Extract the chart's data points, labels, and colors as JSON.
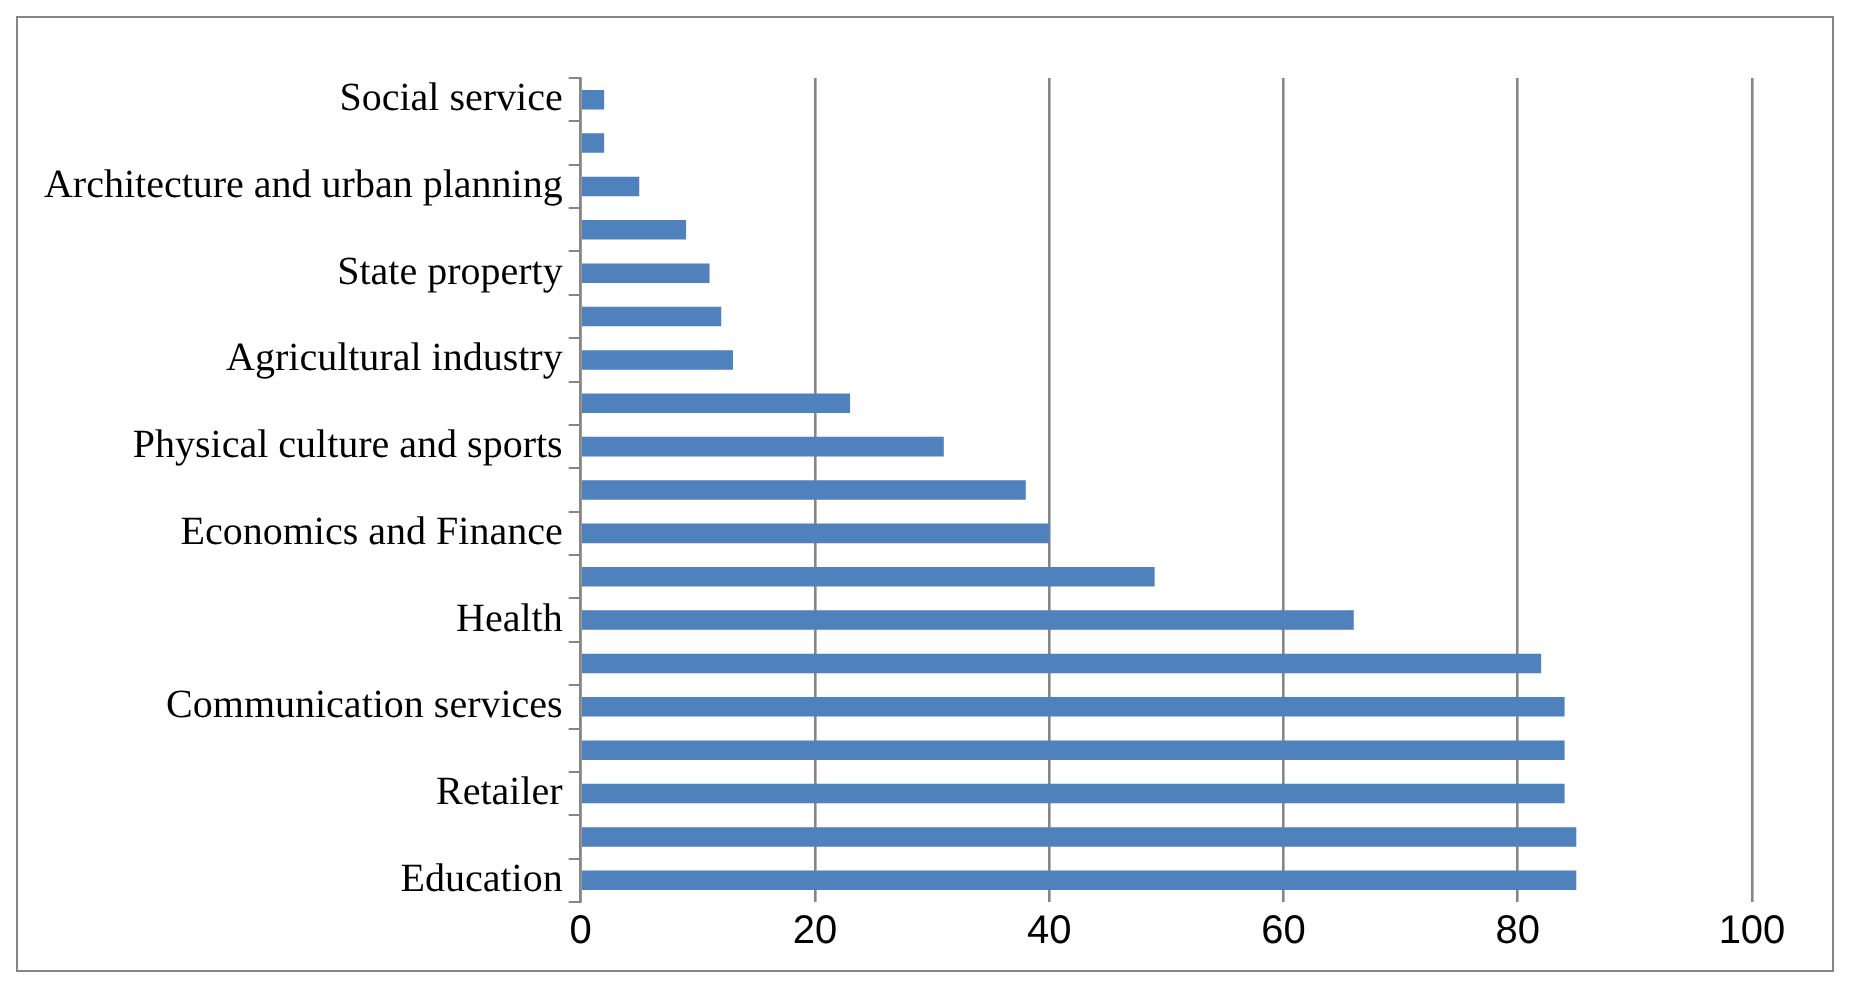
{
  "chart_data": {
    "type": "bar",
    "orientation": "horizontal",
    "categories": [
      "Social service",
      null,
      "Architecture and urban planning",
      null,
      "State property",
      null,
      "Agricultural industry",
      null,
      "Physical culture and sports",
      null,
      "Economics and Finance",
      null,
      "Health",
      null,
      "Communication services",
      null,
      "Retailer",
      null,
      "Education"
    ],
    "values": [
      2,
      2,
      5,
      9,
      11,
      12,
      13,
      23,
      31,
      38,
      40,
      49,
      66,
      82,
      84,
      84,
      84,
      85,
      85
    ],
    "color": "#4f81bd",
    "xlim": [
      0,
      100
    ],
    "xticks": [
      0,
      20,
      40,
      60,
      80,
      100
    ],
    "grid": "x",
    "legend": false
  }
}
